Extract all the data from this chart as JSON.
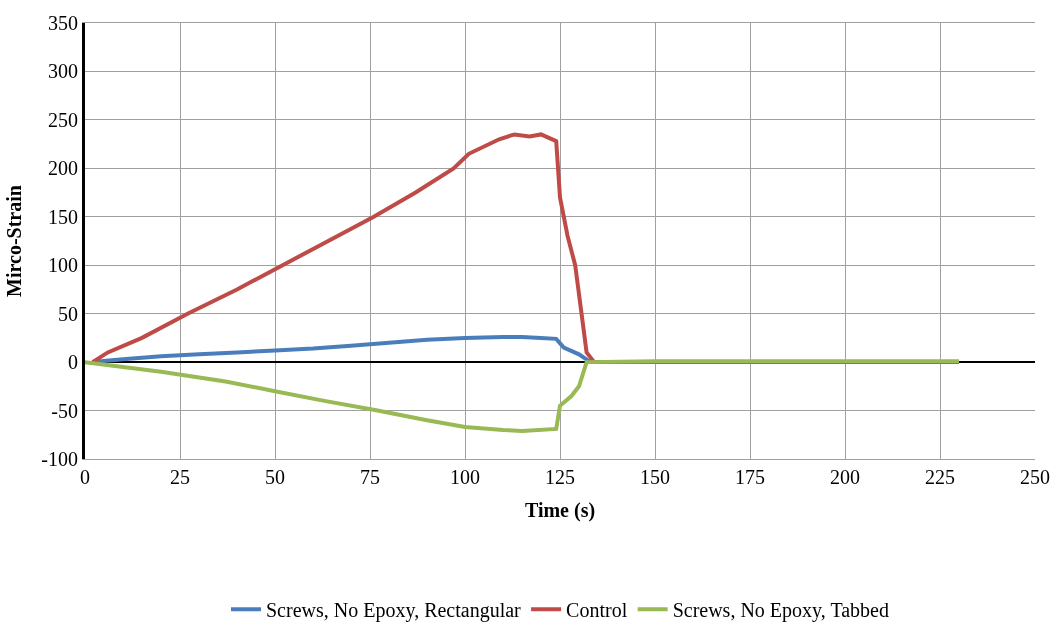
{
  "chart_data": {
    "type": "line",
    "xlabel": "Time (s)",
    "ylabel": "Mirco-Strain",
    "xlim": [
      0,
      250
    ],
    "xticks": [
      0,
      25,
      50,
      75,
      100,
      125,
      150,
      175,
      200,
      225,
      250
    ],
    "ylim": [
      -100,
      350
    ],
    "yticks": [
      -100,
      -50,
      0,
      50,
      100,
      150,
      200,
      250,
      300,
      350
    ],
    "grid": true,
    "legend": "bottom",
    "marker": "none",
    "line_style": "solid",
    "series": [
      {
        "name": "Screws, No Epoxy, Rectangular",
        "color": "#4a7ebb",
        "x": [
          2,
          10,
          20,
          30,
          40,
          50,
          60,
          70,
          80,
          90,
          100,
          110,
          115,
          120,
          124,
          126,
          130,
          133,
          150
        ],
        "values": [
          0,
          3,
          6,
          8,
          10,
          12,
          14,
          17,
          20,
          23,
          25,
          26,
          26,
          25,
          24,
          15,
          8,
          0,
          0
        ]
      },
      {
        "name": "Control",
        "color": "#be4b48",
        "x": [
          2,
          6,
          15,
          27,
          40,
          52,
          64,
          76,
          87,
          97,
          101,
          109,
          113,
          117,
          120,
          124,
          125,
          127,
          129,
          131,
          132,
          134,
          150,
          175,
          200,
          230
        ],
        "values": [
          0,
          10,
          25,
          50,
          75,
          100,
          125,
          150,
          175,
          200,
          215,
          230,
          235,
          233,
          235,
          228,
          170,
          130,
          100,
          40,
          10,
          0,
          0,
          0,
          0,
          0
        ]
      },
      {
        "name": "Screws, No Epoxy, Tabbed",
        "color": "#98b954",
        "x": [
          0,
          20,
          37,
          50,
          63,
          77,
          90,
          100,
          110,
          115,
          124,
          125,
          128,
          130,
          132,
          150,
          175,
          200,
          230
        ],
        "values": [
          0,
          -10,
          -20,
          -30,
          -40,
          -50,
          -60,
          -67,
          -70,
          -71,
          -69,
          -45,
          -35,
          -25,
          0,
          1,
          1,
          1,
          1
        ]
      }
    ]
  }
}
